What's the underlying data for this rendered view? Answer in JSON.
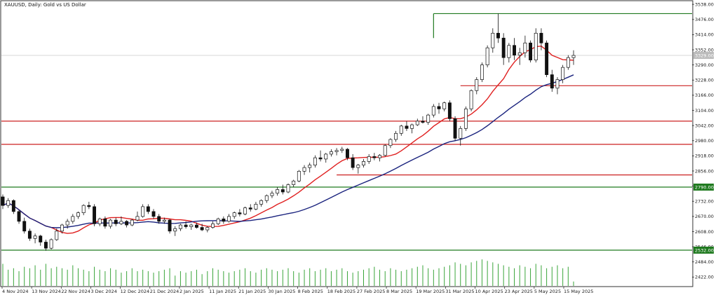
{
  "chart_data": {
    "type": "candlestick",
    "title": "XAUUSD, Daily:  Gold vs US Dollar",
    "ylim": [
      2380,
      3550
    ],
    "y_ticks": [
      "3538.00",
      "3476.00",
      "3414.00",
      "3352.00",
      "3290.00",
      "3228.00",
      "3166.00",
      "3104.00",
      "3042.00",
      "2980.00",
      "2918.00",
      "2856.00",
      "2794.00",
      "2732.00",
      "2670.00",
      "2608.00",
      "2546.00",
      "2484.00",
      "2422.00"
    ],
    "x_ticks": [
      "4 Nov 2024",
      "13 Nov 2024",
      "22 Nov 2024",
      "3 Dec 2024",
      "12 Dec 2024",
      "21 Dec 2024",
      "2 Jan 2025",
      "11 Jan 2025",
      "21 Jan 2025",
      "30 Jan 2025",
      "8 Feb 2025",
      "18 Feb 2025",
      "27 Feb 2025",
      "8 Mar 2025",
      "19 Mar 2025",
      "31 Mar 2025",
      "10 Apr 2025",
      "23 Apr 2025",
      "5 May 2025",
      "15 May 2025"
    ],
    "price_labels": [
      {
        "value": 2790.0,
        "text": "2790.00",
        "color": "#1f7a1f"
      },
      {
        "value": 2532.0,
        "text": "2532.00",
        "color": "#1f7a1f"
      },
      {
        "value": 3329.0,
        "text": "3329.00",
        "color": "#bbbbbb"
      }
    ],
    "levels": [
      {
        "value": 3500,
        "color": "#1f7a1f",
        "start": 80
      },
      {
        "value": 3205,
        "color": "#cc2222",
        "start": 85
      },
      {
        "value": 3060,
        "color": "#cc2222",
        "start": 0
      },
      {
        "value": 2965,
        "color": "#cc2222",
        "start": 0
      },
      {
        "value": 2840,
        "color": "#cc2222",
        "start": 62
      },
      {
        "value": 2790,
        "color": "#1f7a1f",
        "start": 0
      },
      {
        "value": 2532,
        "color": "#1f7a1f",
        "start": 0
      }
    ],
    "ma_fast": {
      "color": "#e02020"
    },
    "ma_slow": {
      "color": "#1a237e"
    },
    "candles": [
      [
        2750,
        2760,
        2700,
        2715
      ],
      [
        2715,
        2745,
        2705,
        2735
      ],
      [
        2735,
        2740,
        2680,
        2690
      ],
      [
        2690,
        2695,
        2640,
        2650
      ],
      [
        2650,
        2665,
        2600,
        2610
      ],
      [
        2610,
        2620,
        2570,
        2580
      ],
      [
        2580,
        2600,
        2560,
        2590
      ],
      [
        2590,
        2595,
        2550,
        2565
      ],
      [
        2565,
        2575,
        2530,
        2540
      ],
      [
        2540,
        2580,
        2535,
        2575
      ],
      [
        2575,
        2620,
        2570,
        2610
      ],
      [
        2610,
        2640,
        2600,
        2635
      ],
      [
        2635,
        2660,
        2620,
        2650
      ],
      [
        2650,
        2680,
        2640,
        2670
      ],
      [
        2670,
        2690,
        2660,
        2685
      ],
      [
        2685,
        2720,
        2675,
        2715
      ],
      [
        2715,
        2730,
        2700,
        2710
      ],
      [
        2710,
        2720,
        2630,
        2640
      ],
      [
        2640,
        2665,
        2630,
        2660
      ],
      [
        2660,
        2670,
        2620,
        2630
      ],
      [
        2630,
        2660,
        2620,
        2655
      ],
      [
        2655,
        2665,
        2630,
        2640
      ],
      [
        2640,
        2670,
        2635,
        2650
      ],
      [
        2650,
        2655,
        2625,
        2635
      ],
      [
        2635,
        2660,
        2630,
        2655
      ],
      [
        2655,
        2690,
        2650,
        2670
      ],
      [
        2670,
        2720,
        2665,
        2710
      ],
      [
        2710,
        2720,
        2680,
        2690
      ],
      [
        2690,
        2700,
        2660,
        2670
      ],
      [
        2670,
        2680,
        2640,
        2650
      ],
      [
        2650,
        2665,
        2640,
        2655
      ],
      [
        2655,
        2660,
        2600,
        2610
      ],
      [
        2610,
        2630,
        2590,
        2620
      ],
      [
        2620,
        2640,
        2610,
        2635
      ],
      [
        2635,
        2650,
        2620,
        2628
      ],
      [
        2628,
        2640,
        2615,
        2635
      ],
      [
        2635,
        2645,
        2620,
        2625
      ],
      [
        2625,
        2640,
        2610,
        2615
      ],
      [
        2615,
        2630,
        2605,
        2625
      ],
      [
        2625,
        2650,
        2620,
        2640
      ],
      [
        2640,
        2665,
        2635,
        2660
      ],
      [
        2660,
        2670,
        2640,
        2650
      ],
      [
        2650,
        2680,
        2645,
        2670
      ],
      [
        2670,
        2690,
        2660,
        2685
      ],
      [
        2685,
        2700,
        2670,
        2680
      ],
      [
        2680,
        2710,
        2675,
        2705
      ],
      [
        2705,
        2720,
        2690,
        2700
      ],
      [
        2700,
        2730,
        2695,
        2720
      ],
      [
        2720,
        2740,
        2710,
        2735
      ],
      [
        2735,
        2760,
        2725,
        2755
      ],
      [
        2755,
        2775,
        2745,
        2765
      ],
      [
        2765,
        2790,
        2755,
        2780
      ],
      [
        2780,
        2800,
        2760,
        2770
      ],
      [
        2770,
        2805,
        2765,
        2800
      ],
      [
        2800,
        2820,
        2790,
        2815
      ],
      [
        2815,
        2860,
        2810,
        2855
      ],
      [
        2855,
        2880,
        2840,
        2870
      ],
      [
        2870,
        2890,
        2850,
        2880
      ],
      [
        2880,
        2920,
        2870,
        2910
      ],
      [
        2910,
        2940,
        2895,
        2905
      ],
      [
        2905,
        2930,
        2890,
        2925
      ],
      [
        2925,
        2945,
        2915,
        2935
      ],
      [
        2935,
        2950,
        2920,
        2940
      ],
      [
        2940,
        2955,
        2930,
        2945
      ],
      [
        2945,
        2950,
        2900,
        2910
      ],
      [
        2910,
        2925,
        2860,
        2870
      ],
      [
        2870,
        2885,
        2845,
        2880
      ],
      [
        2880,
        2905,
        2870,
        2895
      ],
      [
        2895,
        2925,
        2885,
        2915
      ],
      [
        2915,
        2930,
        2900,
        2910
      ],
      [
        2910,
        2925,
        2895,
        2920
      ],
      [
        2920,
        2965,
        2915,
        2960
      ],
      [
        2960,
        2990,
        2950,
        2985
      ],
      [
        2985,
        3020,
        2975,
        3010
      ],
      [
        3010,
        3045,
        3000,
        3040
      ],
      [
        3040,
        3060,
        3020,
        3030
      ],
      [
        3030,
        3050,
        3010,
        3045
      ],
      [
        3045,
        3070,
        3040,
        3060
      ],
      [
        3060,
        3080,
        3050,
        3055
      ],
      [
        3055,
        3090,
        3045,
        3085
      ],
      [
        3085,
        3130,
        3075,
        3120
      ],
      [
        3120,
        3135,
        3090,
        3110
      ],
      [
        3110,
        3140,
        3100,
        3135
      ],
      [
        3135,
        3145,
        3060,
        3070
      ],
      [
        3070,
        3080,
        2980,
        2990
      ],
      [
        2990,
        3040,
        2960,
        3030
      ],
      [
        3030,
        3120,
        3020,
        3110
      ],
      [
        3110,
        3190,
        3100,
        3185
      ],
      [
        3185,
        3240,
        3170,
        3230
      ],
      [
        3230,
        3300,
        3220,
        3290
      ],
      [
        3290,
        3370,
        3280,
        3360
      ],
      [
        3360,
        3440,
        3340,
        3420
      ],
      [
        3420,
        3500,
        3380,
        3400
      ],
      [
        3400,
        3420,
        3290,
        3320
      ],
      [
        3320,
        3380,
        3300,
        3370
      ],
      [
        3370,
        3400,
        3310,
        3330
      ],
      [
        3330,
        3360,
        3290,
        3340
      ],
      [
        3340,
        3410,
        3320,
        3380
      ],
      [
        3380,
        3390,
        3300,
        3310
      ],
      [
        3310,
        3440,
        3300,
        3420
      ],
      [
        3420,
        3440,
        3350,
        3380
      ],
      [
        3380,
        3390,
        3240,
        3250
      ],
      [
        3250,
        3270,
        3180,
        3195
      ],
      [
        3195,
        3240,
        3170,
        3230
      ],
      [
        3230,
        3290,
        3215,
        3280
      ],
      [
        3280,
        3330,
        3270,
        3320
      ],
      [
        3320,
        3350,
        3290,
        3329
      ]
    ],
    "volumes": [
      0.75,
      0.55,
      0.6,
      0.5,
      0.65,
      0.6,
      0.7,
      0.55,
      0.75,
      0.6,
      0.65,
      0.6,
      0.55,
      0.7,
      0.6,
      0.55,
      0.5,
      0.65,
      0.55,
      0.5,
      0.6,
      0.55,
      0.45,
      0.5,
      0.6,
      0.5,
      0.55,
      0.5,
      0.45,
      0.5,
      0.55,
      0.6,
      0.35,
      0.5,
      0.45,
      0.5,
      0.55,
      0.4,
      0.5,
      0.6,
      0.55,
      0.5,
      0.45,
      0.5,
      0.55,
      0.6,
      0.5,
      0.45,
      0.55,
      0.6,
      0.55,
      0.5,
      0.55,
      0.6,
      0.5,
      0.45,
      0.55,
      0.6,
      0.5,
      0.55,
      0.6,
      0.5,
      0.55,
      0.6,
      0.5,
      0.45,
      0.5,
      0.55,
      0.6,
      0.65,
      0.55,
      0.5,
      0.6,
      0.55,
      0.5,
      0.55,
      0.6,
      0.65,
      0.7,
      0.6,
      0.55,
      0.6,
      0.65,
      0.7,
      0.8,
      0.75,
      0.7,
      0.8,
      0.85,
      0.9,
      0.85,
      0.8,
      0.75,
      0.7,
      0.65,
      0.6,
      0.7,
      0.65,
      0.6,
      0.75,
      0.7,
      0.6,
      0.65,
      0.7,
      0.6,
      0.65,
      0.15
    ],
    "volume_marks": [
      {
        "from": 46,
        "text": "2 0 1 2 4 0 1 1 2"
      },
      {
        "from": 68,
        "text": "1 8 1 8 3 0 1"
      },
      {
        "from": 84,
        "text": "1 2 2 2 3 1 9 1 2 1 0 0"
      },
      {
        "from": 146,
        "text": "1 2 2 2 3 1 1 2 1 0 5"
      },
      {
        "from": 195,
        "text": "1 2 2 2 3 1 8 5"
      },
      {
        "from": 198,
        "text": "1 2 2 2 3 1 1 2 0 5"
      },
      {
        "from": 239,
        "text": "1 1 2 2 2 3 1 1 6 0 5"
      },
      {
        "from": 265,
        "text": "1 2 2 2 3 1 1 2 1 0 5"
      }
    ]
  }
}
